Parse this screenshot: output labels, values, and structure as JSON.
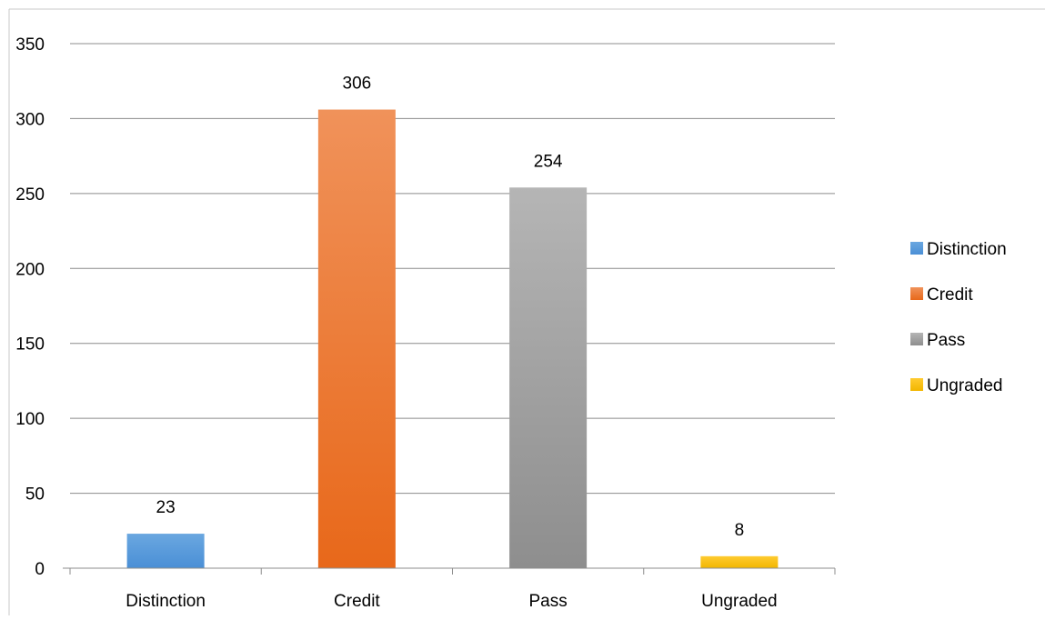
{
  "chart_data": {
    "type": "bar",
    "categories": [
      "Distinction",
      "Credit",
      "Pass",
      "Ungraded"
    ],
    "values": [
      23,
      306,
      254,
      8
    ],
    "data_labels": [
      "23",
      "306",
      "254",
      "8"
    ],
    "colors": [
      {
        "top": "#6aa7e0",
        "bottom": "#4a8fd6"
      },
      {
        "top": "#f0925a",
        "bottom": "#e8681a"
      },
      {
        "top": "#b5b5b5",
        "bottom": "#8e8e8e"
      },
      {
        "top": "#ffcb30",
        "bottom": "#f2b600"
      }
    ],
    "ylim": [
      0,
      350
    ],
    "yticks": [
      0,
      50,
      100,
      150,
      200,
      250,
      300,
      350
    ],
    "ytick_labels": [
      "0",
      "50",
      "100",
      "150",
      "200",
      "250",
      "300",
      "350"
    ],
    "grid": true,
    "legend": {
      "placement": "right",
      "entries": [
        "Distinction",
        "Credit",
        "Pass",
        "Ungraded"
      ]
    },
    "title": "",
    "xlabel": "",
    "ylabel": ""
  }
}
